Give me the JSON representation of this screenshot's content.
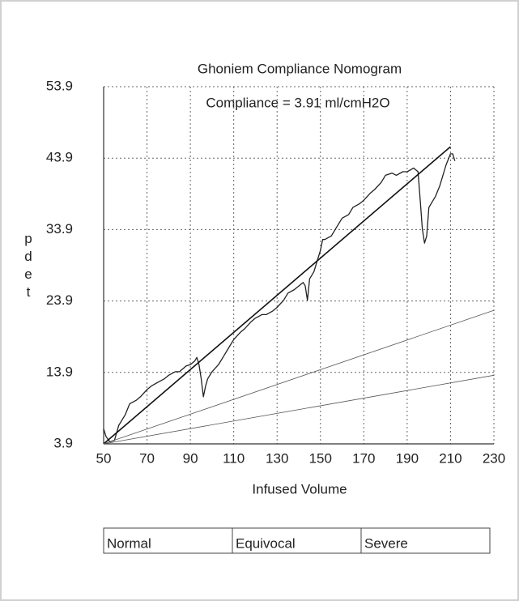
{
  "chart_data": {
    "type": "line",
    "title": "Ghoniem Compliance Nomogram",
    "annotation": "Compliance = 3.91 ml/cmH2O",
    "x_label": "Infused Volume",
    "y_label": "pdet",
    "xlim": [
      50,
      230
    ],
    "xticks": [
      50,
      70,
      90,
      110,
      130,
      150,
      170,
      190,
      210,
      230
    ],
    "ylim": [
      3.9,
      53.9
    ],
    "yticks": [
      3.9,
      13.9,
      23.9,
      33.9,
      43.9,
      53.9
    ],
    "grid": true,
    "series": [
      {
        "color": "#222222",
        "width": 1.3,
        "x": [
          50,
          51,
          52,
          53,
          55,
          57,
          58,
          60,
          62,
          65,
          67,
          70,
          72,
          75,
          78,
          80,
          83,
          85,
          88,
          90,
          92,
          93,
          94,
          95,
          96,
          97,
          98,
          100,
          103,
          105,
          108,
          110,
          113,
          115,
          118,
          120,
          123,
          125,
          128,
          130,
          133,
          135,
          138,
          140,
          142,
          143,
          144,
          145,
          147,
          148,
          150,
          151,
          152,
          155,
          158,
          160,
          163,
          165,
          168,
          170,
          173,
          175,
          178,
          180,
          183,
          185,
          188,
          190,
          193,
          195,
          196,
          197,
          198,
          199,
          200,
          202,
          203,
          205,
          207,
          208,
          210,
          211,
          212
        ],
        "values": [
          6,
          5,
          4.5,
          4.2,
          4.4,
          6.5,
          7,
          8,
          9.5,
          10,
          10.5,
          11.5,
          12,
          12.5,
          13,
          13.5,
          14,
          14,
          14.8,
          15,
          15.5,
          16,
          15,
          13,
          10.5,
          12,
          13,
          14,
          15,
          16,
          17.5,
          18.5,
          19.5,
          20,
          21,
          21.5,
          22,
          22,
          22.5,
          23,
          24,
          25,
          25.5,
          26,
          26.5,
          26,
          24,
          27,
          28,
          29,
          31,
          32.5,
          32.5,
          33,
          34.5,
          35.5,
          36,
          37,
          37.5,
          38,
          39,
          39.5,
          40.5,
          41.5,
          41.8,
          41.5,
          42,
          42,
          42.5,
          42,
          38,
          34,
          32,
          33,
          37,
          38,
          38.5,
          40,
          42,
          43,
          44.5,
          44.5,
          43.5
        ]
      },
      {
        "color": "#111111",
        "width": 1.6,
        "x": [
          50,
          210
        ],
        "values": [
          3.9,
          45.5
        ]
      },
      {
        "color": "#555555",
        "width": 0.8,
        "x": [
          50,
          230
        ],
        "values": [
          3.9,
          22.6
        ]
      },
      {
        "color": "#555555",
        "width": 0.8,
        "x": [
          50,
          230
        ],
        "values": [
          3.9,
          13.5
        ]
      }
    ],
    "legend_boxes": [
      "Normal",
      "Equivocal",
      "Severe"
    ]
  }
}
